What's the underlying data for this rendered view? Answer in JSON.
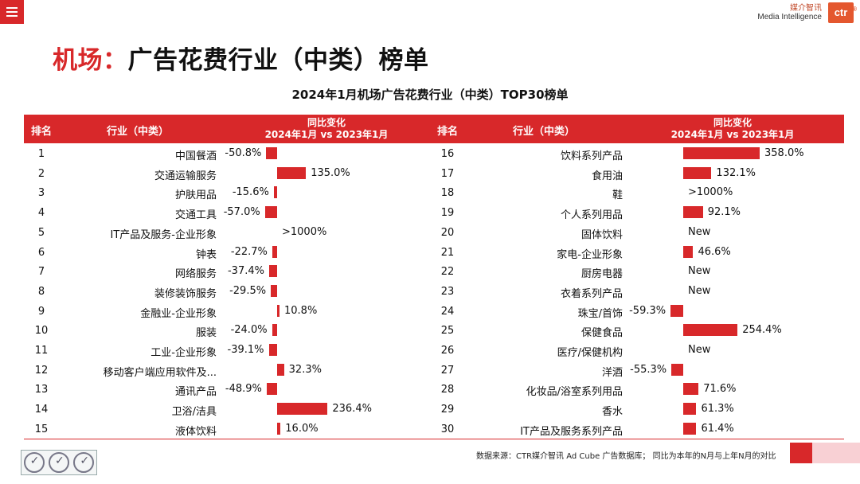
{
  "header": {
    "menu_icon": "hamburger-menu-icon",
    "brand_cn": "媒介智讯",
    "brand_en": "Media Intelligence",
    "logo_text": "ctr",
    "accent": "#d8282a"
  },
  "page_title_prefix": "机场：",
  "page_title_rest": "广告花费行业（中类）榜单",
  "source_text": "数据来源：CTR媒介智讯 Ad Cube 广告数据库； 同比为本年的N月与上年N月的对比",
  "chart_data": {
    "type": "table",
    "title": "2024年1月机场广告花费行业（中类）TOP30榜单",
    "columns": [
      "排名",
      "行业（中类）",
      "同比变化",
      "2024年1月 vs 2023年1月"
    ],
    "bar_scale_max": 358.0,
    "tables": [
      {
        "rows": [
          {
            "rank": "1",
            "industry": "中国餐酒",
            "change": -50.8,
            "label": "-50.8%"
          },
          {
            "rank": "2",
            "industry": "交通运输服务",
            "change": 135.0,
            "label": "135.0%"
          },
          {
            "rank": "3",
            "industry": "护肤用品",
            "change": -15.6,
            "label": "-15.6%"
          },
          {
            "rank": "4",
            "industry": "交通工具",
            "change": -57.0,
            "label": "-57.0%"
          },
          {
            "rank": "5",
            "industry": "IT产品及服务-企业形象",
            "change": null,
            "label": ">1000%"
          },
          {
            "rank": "6",
            "industry": "钟表",
            "change": -22.7,
            "label": "-22.7%"
          },
          {
            "rank": "7",
            "industry": "网络服务",
            "change": -37.4,
            "label": "-37.4%"
          },
          {
            "rank": "8",
            "industry": "装修装饰服务",
            "change": -29.5,
            "label": "-29.5%"
          },
          {
            "rank": "9",
            "industry": "金融业-企业形象",
            "change": 10.8,
            "label": "10.8%"
          },
          {
            "rank": "10",
            "industry": "服装",
            "change": -24.0,
            "label": "-24.0%"
          },
          {
            "rank": "11",
            "industry": "工业-企业形象",
            "change": -39.1,
            "label": "-39.1%"
          },
          {
            "rank": "12",
            "industry": "移动客户端应用软件及...",
            "change": 32.3,
            "label": "32.3%"
          },
          {
            "rank": "13",
            "industry": "通讯产品",
            "change": -48.9,
            "label": "-48.9%"
          },
          {
            "rank": "14",
            "industry": "卫浴/洁具",
            "change": 236.4,
            "label": "236.4%"
          },
          {
            "rank": "15",
            "industry": "液体饮料",
            "change": 16.0,
            "label": "16.0%"
          }
        ]
      },
      {
        "rows": [
          {
            "rank": "16",
            "industry": "饮料系列产品",
            "change": 358.0,
            "label": "358.0%"
          },
          {
            "rank": "17",
            "industry": "食用油",
            "change": 132.1,
            "label": "132.1%"
          },
          {
            "rank": "18",
            "industry": "鞋",
            "change": null,
            "label": ">1000%"
          },
          {
            "rank": "19",
            "industry": "个人系列用品",
            "change": 92.1,
            "label": "92.1%"
          },
          {
            "rank": "20",
            "industry": "固体饮料",
            "change": null,
            "label": "New"
          },
          {
            "rank": "21",
            "industry": "家电-企业形象",
            "change": 46.6,
            "label": "46.6%"
          },
          {
            "rank": "22",
            "industry": "厨房电器",
            "change": null,
            "label": "New"
          },
          {
            "rank": "23",
            "industry": "衣着系列产品",
            "change": null,
            "label": "New"
          },
          {
            "rank": "24",
            "industry": "珠宝/首饰",
            "change": -59.3,
            "label": "-59.3%"
          },
          {
            "rank": "25",
            "industry": "保健食品",
            "change": 254.4,
            "label": "254.4%"
          },
          {
            "rank": "26",
            "industry": "医疗/保健机构",
            "change": null,
            "label": "New"
          },
          {
            "rank": "27",
            "industry": "洋酒",
            "change": -55.3,
            "label": "-55.3%"
          },
          {
            "rank": "28",
            "industry": "化妆品/浴室系列用品",
            "change": 71.6,
            "label": "71.6%"
          },
          {
            "rank": "29",
            "industry": "香水",
            "change": 61.3,
            "label": "61.3%"
          },
          {
            "rank": "30",
            "industry": "IT产品及服务系列产品",
            "change": 61.4,
            "label": "61.4%"
          }
        ]
      }
    ]
  }
}
